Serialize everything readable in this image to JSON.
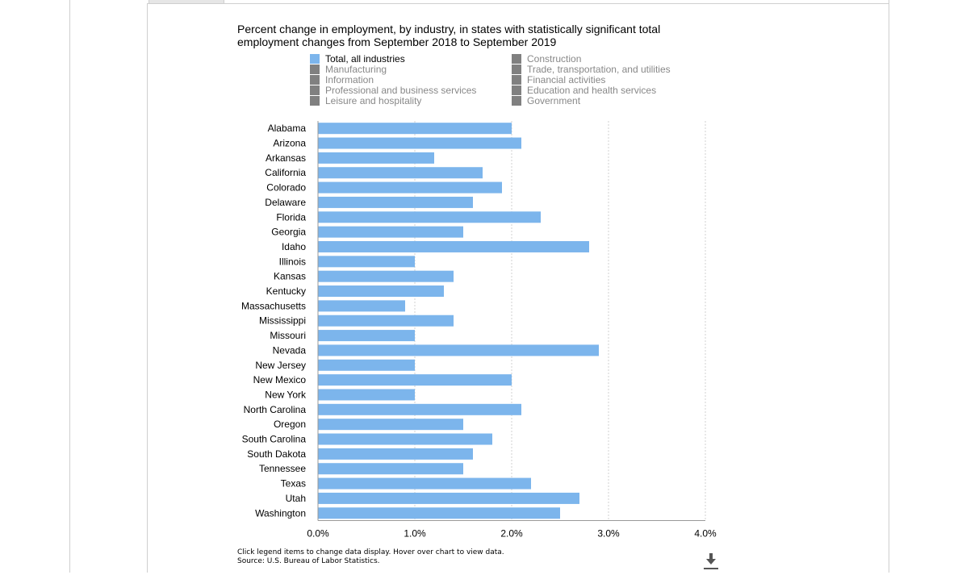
{
  "chart_data": {
    "type": "bar",
    "orientation": "horizontal",
    "title": "Percent change in employment, by industry, in states with statistically significant total employment changes from September 2018 to September 2019",
    "xlabel": "",
    "ylabel": "",
    "xlim": [
      0,
      4
    ],
    "xticks": [
      {
        "value": 0,
        "label": "0.0%"
      },
      {
        "value": 1,
        "label": "1.0%"
      },
      {
        "value": 2,
        "label": "2.0%"
      },
      {
        "value": 3,
        "label": "3.0%"
      },
      {
        "value": 4,
        "label": "4.0%"
      }
    ],
    "grid": true,
    "legend": {
      "placement": "top",
      "items": [
        {
          "label": "Total, all industries",
          "color": "#7cb5ec",
          "active": true
        },
        {
          "label": "Construction",
          "color": "#808080",
          "active": false
        },
        {
          "label": "Manufacturing",
          "color": "#808080",
          "active": false
        },
        {
          "label": "Trade, transportation, and utilities",
          "color": "#808080",
          "active": false
        },
        {
          "label": "Information",
          "color": "#808080",
          "active": false
        },
        {
          "label": "Financial activities",
          "color": "#808080",
          "active": false
        },
        {
          "label": "Professional and business services",
          "color": "#808080",
          "active": false
        },
        {
          "label": "Education and health services",
          "color": "#808080",
          "active": false
        },
        {
          "label": "Leisure and hospitality",
          "color": "#808080",
          "active": false
        },
        {
          "label": "Government",
          "color": "#808080",
          "active": false
        }
      ]
    },
    "categories": [
      "Alabama",
      "Arizona",
      "Arkansas",
      "California",
      "Colorado",
      "Delaware",
      "Florida",
      "Georgia",
      "Idaho",
      "Illinois",
      "Kansas",
      "Kentucky",
      "Massachusetts",
      "Mississippi",
      "Missouri",
      "Nevada",
      "New Jersey",
      "New Mexico",
      "New York",
      "North Carolina",
      "Oregon",
      "South Carolina",
      "South Dakota",
      "Tennessee",
      "Texas",
      "Utah",
      "Washington"
    ],
    "series": [
      {
        "name": "Total, all industries",
        "color": "#7cb5ec",
        "values": [
          2.0,
          2.1,
          1.2,
          1.7,
          1.9,
          1.6,
          2.3,
          1.5,
          2.8,
          1.0,
          1.4,
          1.3,
          0.9,
          1.4,
          1.0,
          2.9,
          1.0,
          2.0,
          1.0,
          2.1,
          1.5,
          1.8,
          1.6,
          1.5,
          2.2,
          2.7,
          2.5
        ]
      }
    ]
  },
  "footnotes": {
    "line1": "Click legend items to change data display. Hover over chart to view data.",
    "line2": "Source: U.S. Bureau of Labor Statistics."
  },
  "download_icon": "download-icon"
}
